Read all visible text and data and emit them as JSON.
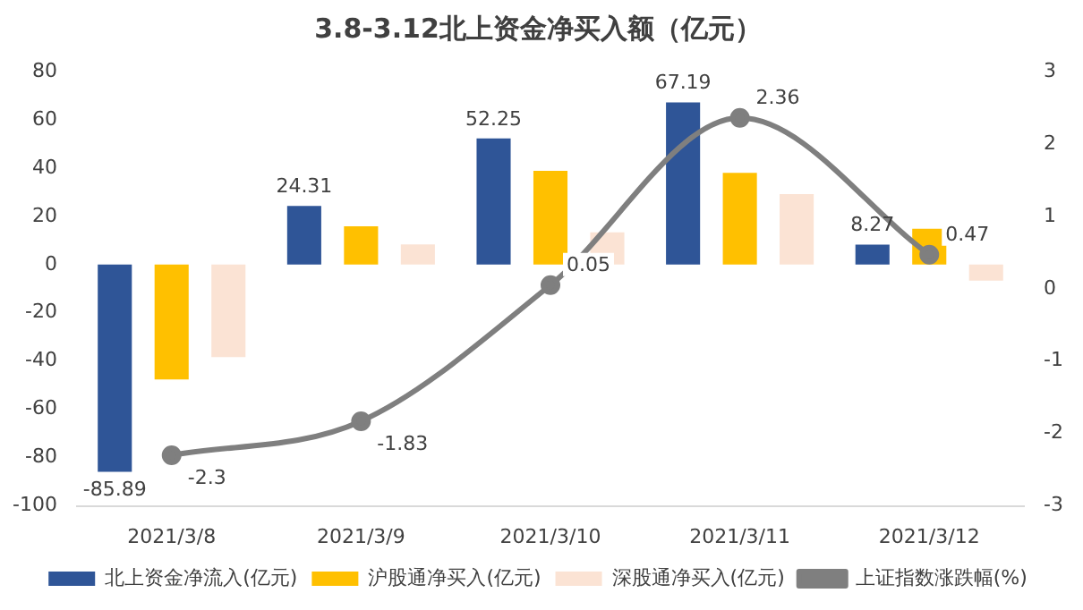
{
  "chart_data": {
    "type": "bar",
    "title": "3.8-3.12北上资金净买入额（亿元）",
    "categories": [
      "2021/3/8",
      "2021/3/9",
      "2021/3/10",
      "2021/3/11",
      "2021/3/12"
    ],
    "series": [
      {
        "name": "北上资金净流入(亿元)",
        "color": "#2f5597",
        "values": [
          -85.89,
          24.31,
          52.25,
          67.19,
          8.27
        ],
        "value_labels": [
          "-85.89",
          "24.31",
          "52.25",
          "67.19",
          "8.27"
        ]
      },
      {
        "name": "沪股通净买入(亿元)",
        "color": "#ffc000",
        "values": [
          -47.6,
          15.9,
          38.9,
          38.0,
          14.9
        ]
      },
      {
        "name": "深股通净买入(亿元)",
        "color": "#fbe3d4",
        "values": [
          -38.3,
          8.4,
          13.4,
          29.2,
          -6.6
        ]
      },
      {
        "name": "上证指数涨跌幅(%)",
        "type": "line",
        "axis": "y2",
        "color": "#7f7f7f",
        "marker": "circle",
        "values": [
          -2.3,
          -1.83,
          0.05,
          2.36,
          0.47
        ],
        "value_labels": [
          "-2.3",
          "-1.83",
          "0.05",
          "2.36",
          "0.47"
        ]
      }
    ],
    "ylim": [
      -100,
      80
    ],
    "yticks": [
      -100,
      -80,
      -60,
      -40,
      -20,
      0,
      20,
      40,
      60,
      80
    ],
    "y2lim": [
      -3,
      3
    ],
    "y2ticks": [
      -3,
      -2,
      -1,
      0,
      1,
      2,
      3
    ],
    "grid": false,
    "legend": "bottom"
  }
}
